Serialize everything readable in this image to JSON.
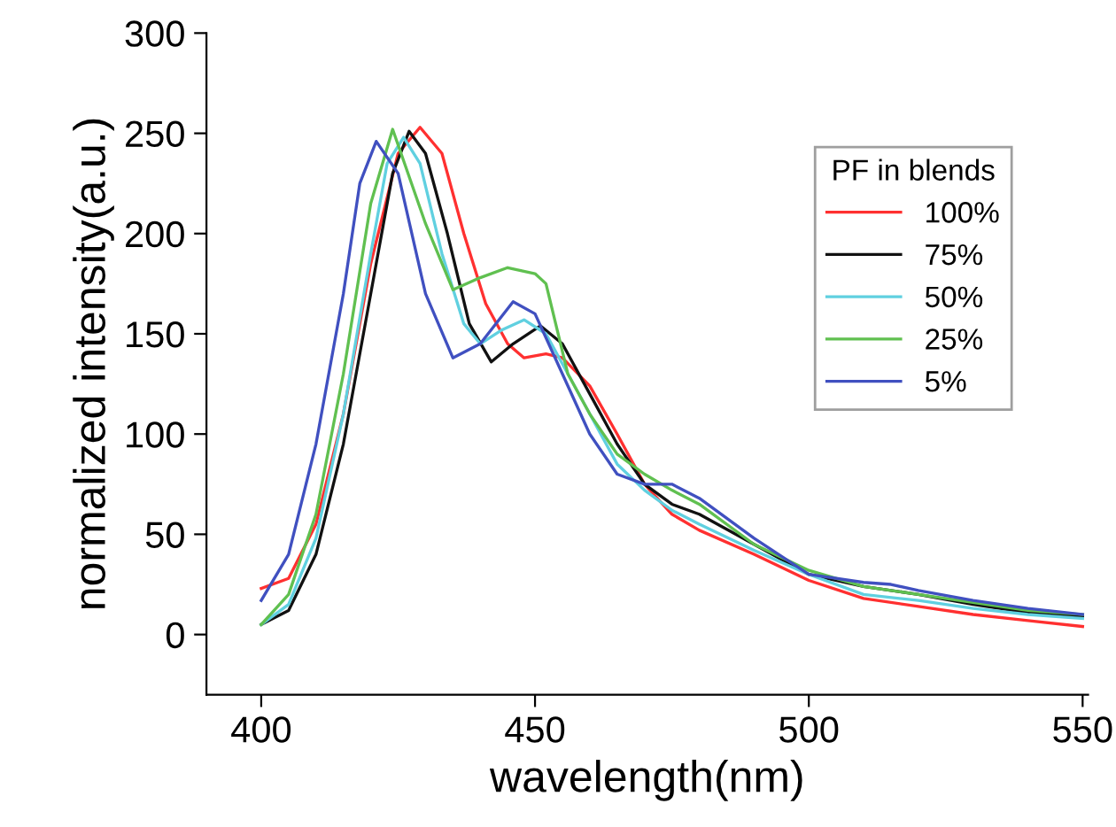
{
  "chart_data": {
    "type": "line",
    "xlabel": "wavelength(nm)",
    "ylabel": "normalized intensity(a.u.)",
    "legend_title": "PF in blends",
    "legend": "top right",
    "grid": false,
    "marker": "none",
    "line_style": "solid",
    "xlim": [
      390,
      551
    ],
    "ylim": [
      -30,
      300
    ],
    "xticks": [
      400,
      450,
      500,
      550
    ],
    "yticks": [
      0,
      50,
      100,
      150,
      200,
      250,
      300
    ],
    "series": [
      {
        "name": "100%",
        "color": "#ff3030",
        "x": [
          400,
          405,
          410,
          415,
          420,
          425,
          429,
          433,
          437,
          441,
          445,
          448,
          452,
          455,
          460,
          465,
          470,
          475,
          480,
          490,
          500,
          510,
          520,
          530,
          540,
          550
        ],
        "values": [
          23,
          28,
          55,
          110,
          185,
          240,
          253,
          240,
          200,
          165,
          145,
          138,
          140,
          138,
          124,
          100,
          75,
          60,
          52,
          40,
          27,
          18,
          14,
          10,
          7,
          4
        ]
      },
      {
        "name": "75%",
        "color": "#111111",
        "x": [
          400,
          405,
          410,
          415,
          420,
          424,
          427,
          430,
          434,
          438,
          442,
          446,
          451,
          455,
          460,
          465,
          470,
          475,
          480,
          490,
          500,
          510,
          520,
          530,
          540,
          550
        ],
        "values": [
          5,
          12,
          40,
          95,
          170,
          230,
          251,
          240,
          200,
          155,
          136,
          145,
          154,
          145,
          120,
          95,
          75,
          65,
          60,
          45,
          30,
          24,
          20,
          15,
          11,
          9
        ]
      },
      {
        "name": "50%",
        "color": "#60d0e0",
        "x": [
          400,
          405,
          410,
          415,
          420,
          423,
          426,
          429,
          433,
          437,
          440,
          444,
          448,
          452,
          456,
          460,
          465,
          470,
          475,
          480,
          490,
          500,
          510,
          520,
          530,
          540,
          550
        ],
        "values": [
          5,
          15,
          48,
          110,
          190,
          235,
          248,
          235,
          190,
          155,
          145,
          152,
          157,
          150,
          130,
          110,
          85,
          72,
          62,
          55,
          42,
          30,
          20,
          17,
          13,
          10,
          8
        ]
      },
      {
        "name": "25%",
        "color": "#60c050",
        "x": [
          400,
          405,
          410,
          415,
          420,
          424,
          430,
          435,
          440,
          445,
          450,
          452,
          456,
          460,
          465,
          470,
          475,
          480,
          490,
          500,
          510,
          520,
          530,
          540,
          550
        ],
        "values": [
          5,
          20,
          60,
          130,
          215,
          252,
          205,
          172,
          178,
          183,
          180,
          175,
          130,
          110,
          90,
          80,
          72,
          65,
          45,
          32,
          24,
          20,
          16,
          12,
          10
        ]
      },
      {
        "name": "5%",
        "color": "#4050c0",
        "x": [
          400,
          405,
          410,
          415,
          418,
          421,
          425,
          430,
          435,
          440,
          446,
          450,
          455,
          460,
          465,
          470,
          475,
          480,
          490,
          500,
          510,
          515,
          520,
          530,
          540,
          550
        ],
        "values": [
          17,
          40,
          95,
          170,
          225,
          246,
          230,
          170,
          138,
          145,
          166,
          160,
          130,
          100,
          80,
          75,
          75,
          68,
          48,
          30,
          26,
          25,
          22,
          17,
          13,
          10
        ]
      }
    ]
  }
}
